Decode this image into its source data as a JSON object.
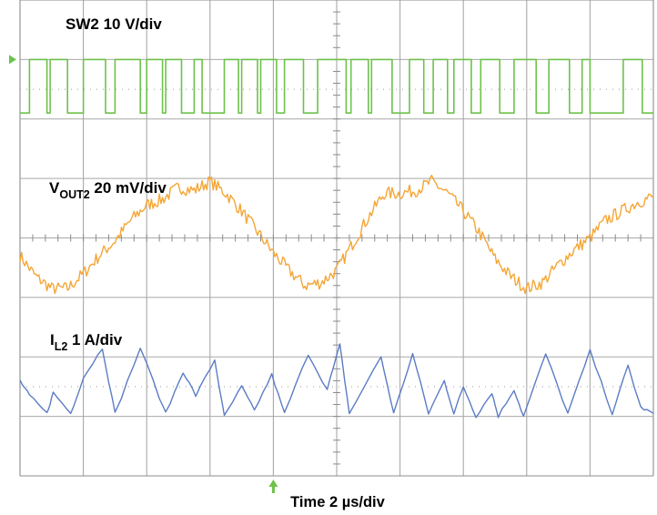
{
  "chart_data": {
    "type": "line",
    "xlabel": "Time 2 µs/div",
    "x_scale": {
      "time_per_div_us": 2,
      "divisions": 10
    },
    "y_divisions": 8,
    "annotations": {
      "sw": {
        "main": "SW2",
        "rest": " 10 V/div"
      },
      "vout": {
        "main": "V",
        "sub": "OUT2",
        "rest": " 20 mV/div"
      },
      "il": {
        "main": "I",
        "sub": "L2",
        "rest": " 1 A/div"
      }
    },
    "series": [
      {
        "name": "SW2",
        "scale": "10 V/div",
        "color": "#6dc24b",
        "marker_color": "#6dc24b",
        "x_unit": "µs",
        "y_unit": "div",
        "points": [
          [
            0,
            2.1
          ],
          [
            0.3,
            2.1
          ],
          [
            0.3,
            3.0
          ],
          [
            0.85,
            3.0
          ],
          [
            0.85,
            2.1
          ],
          [
            0.95,
            2.1
          ],
          [
            0.95,
            3.0
          ],
          [
            1.5,
            3.0
          ],
          [
            1.5,
            2.1
          ],
          [
            2.0,
            2.1
          ],
          [
            2.0,
            3.0
          ],
          [
            2.7,
            3.0
          ],
          [
            2.7,
            2.1
          ],
          [
            3.0,
            2.1
          ],
          [
            3.0,
            3.0
          ],
          [
            3.8,
            3.0
          ],
          [
            3.8,
            2.1
          ],
          [
            4.0,
            2.1
          ],
          [
            4.0,
            3.0
          ],
          [
            4.5,
            3.0
          ],
          [
            4.5,
            2.1
          ],
          [
            4.6,
            2.1
          ],
          [
            4.6,
            3.0
          ],
          [
            5.1,
            3.0
          ],
          [
            5.1,
            2.1
          ],
          [
            5.5,
            2.1
          ],
          [
            5.5,
            3.0
          ],
          [
            5.75,
            3.0
          ],
          [
            5.75,
            2.1
          ],
          [
            6.45,
            2.1
          ],
          [
            6.45,
            3.0
          ],
          [
            6.9,
            3.0
          ],
          [
            6.9,
            2.1
          ],
          [
            7.0,
            2.1
          ],
          [
            7.0,
            3.0
          ],
          [
            7.5,
            3.0
          ],
          [
            7.5,
            2.1
          ],
          [
            7.6,
            2.1
          ],
          [
            7.6,
            3.0
          ],
          [
            8.1,
            3.0
          ],
          [
            8.1,
            2.1
          ],
          [
            8.35,
            2.1
          ],
          [
            8.35,
            3.0
          ],
          [
            8.95,
            3.0
          ],
          [
            8.95,
            2.1
          ],
          [
            9.4,
            2.1
          ],
          [
            9.4,
            3.0
          ],
          [
            10.3,
            3.0
          ],
          [
            10.3,
            2.1
          ],
          [
            10.45,
            2.1
          ],
          [
            10.45,
            3.0
          ],
          [
            11.0,
            3.0
          ],
          [
            11.0,
            2.1
          ],
          [
            11.1,
            2.1
          ],
          [
            11.1,
            3.0
          ],
          [
            11.75,
            3.0
          ],
          [
            11.75,
            2.1
          ],
          [
            12.3,
            2.1
          ],
          [
            12.3,
            3.0
          ],
          [
            12.75,
            3.0
          ],
          [
            12.75,
            2.1
          ],
          [
            13.05,
            2.1
          ],
          [
            13.05,
            3.0
          ],
          [
            13.5,
            3.0
          ],
          [
            13.5,
            2.1
          ],
          [
            13.7,
            2.1
          ],
          [
            13.7,
            3.0
          ],
          [
            14.25,
            3.0
          ],
          [
            14.25,
            2.1
          ],
          [
            14.55,
            2.1
          ],
          [
            14.55,
            3.0
          ],
          [
            15.15,
            3.0
          ],
          [
            15.15,
            2.1
          ],
          [
            15.6,
            2.1
          ],
          [
            15.6,
            3.0
          ],
          [
            16.3,
            3.0
          ],
          [
            16.3,
            2.1
          ],
          [
            16.7,
            2.1
          ],
          [
            16.7,
            3.0
          ],
          [
            17.35,
            3.0
          ],
          [
            17.35,
            2.1
          ],
          [
            17.75,
            2.1
          ],
          [
            17.75,
            3.0
          ],
          [
            18.0,
            3.0
          ],
          [
            18.0,
            2.1
          ],
          [
            19.05,
            2.1
          ],
          [
            19.05,
            3.0
          ],
          [
            19.65,
            3.0
          ],
          [
            19.65,
            2.1
          ],
          [
            20.0,
            2.1
          ]
        ]
      },
      {
        "name": "VOUT2",
        "scale": "20 mV/div",
        "color": "#f4a636",
        "x_unit": "µs",
        "y_unit": "div",
        "points": [
          [
            0,
            -0.3
          ],
          [
            0.5,
            -0.65
          ],
          [
            1.0,
            -0.85
          ],
          [
            1.5,
            -0.85
          ],
          [
            2.0,
            -0.6
          ],
          [
            2.5,
            -0.3
          ],
          [
            3.0,
            -0.05
          ],
          [
            3.5,
            0.3
          ],
          [
            4.0,
            0.55
          ],
          [
            4.5,
            0.65
          ],
          [
            5.0,
            0.85
          ],
          [
            5.5,
            0.8
          ],
          [
            6.0,
            0.95
          ],
          [
            6.5,
            0.75
          ],
          [
            7.0,
            0.45
          ],
          [
            7.5,
            0.1
          ],
          [
            8.0,
            -0.25
          ],
          [
            8.5,
            -0.55
          ],
          [
            9.0,
            -0.8
          ],
          [
            9.5,
            -0.75
          ],
          [
            10.0,
            -0.55
          ],
          [
            10.5,
            -0.1
          ],
          [
            11.0,
            0.35
          ],
          [
            11.5,
            0.75
          ],
          [
            12.0,
            0.75
          ],
          [
            12.5,
            0.8
          ],
          [
            13.0,
            0.95
          ],
          [
            13.5,
            0.75
          ],
          [
            14.0,
            0.45
          ],
          [
            14.5,
            0.1
          ],
          [
            15.0,
            -0.35
          ],
          [
            15.5,
            -0.65
          ],
          [
            16.0,
            -0.85
          ],
          [
            16.5,
            -0.75
          ],
          [
            17.0,
            -0.45
          ],
          [
            17.5,
            -0.2
          ],
          [
            18.0,
            0.0
          ],
          [
            18.5,
            0.3
          ],
          [
            19.0,
            0.45
          ],
          [
            19.5,
            0.6
          ],
          [
            20.0,
            0.7
          ]
        ]
      },
      {
        "name": "IL2",
        "scale": "1 A/div",
        "color": "#5b7cc4",
        "x_unit": "µs",
        "y_unit": "div",
        "points": [
          [
            0,
            -2.4
          ],
          [
            0.3,
            -2.65
          ],
          [
            0.85,
            -2.95
          ],
          [
            1.05,
            -2.6
          ],
          [
            1.6,
            -2.95
          ],
          [
            2.0,
            -2.35
          ],
          [
            2.6,
            -1.85
          ],
          [
            3.0,
            -2.95
          ],
          [
            3.8,
            -1.85
          ],
          [
            4.6,
            -2.95
          ],
          [
            5.15,
            -2.25
          ],
          [
            5.55,
            -2.65
          ],
          [
            6.15,
            -2.05
          ],
          [
            6.45,
            -3.0
          ],
          [
            7.0,
            -2.5
          ],
          [
            7.4,
            -2.9
          ],
          [
            7.95,
            -2.3
          ],
          [
            8.35,
            -2.95
          ],
          [
            9.1,
            -1.95
          ],
          [
            9.7,
            -2.55
          ],
          [
            10.1,
            -1.8
          ],
          [
            10.4,
            -2.95
          ],
          [
            11.4,
            -2.0
          ],
          [
            11.8,
            -2.95
          ],
          [
            12.4,
            -1.95
          ],
          [
            12.9,
            -2.95
          ],
          [
            13.4,
            -2.4
          ],
          [
            13.7,
            -2.95
          ],
          [
            14.0,
            -2.5
          ],
          [
            14.4,
            -3.0
          ],
          [
            14.9,
            -2.6
          ],
          [
            15.1,
            -3.0
          ],
          [
            15.6,
            -2.55
          ],
          [
            15.9,
            -3.0
          ],
          [
            16.6,
            -1.95
          ],
          [
            17.3,
            -2.95
          ],
          [
            18.0,
            -1.9
          ],
          [
            18.7,
            -2.95
          ],
          [
            19.2,
            -2.15
          ],
          [
            19.6,
            -2.85
          ],
          [
            20.0,
            -2.95
          ]
        ]
      }
    ]
  }
}
